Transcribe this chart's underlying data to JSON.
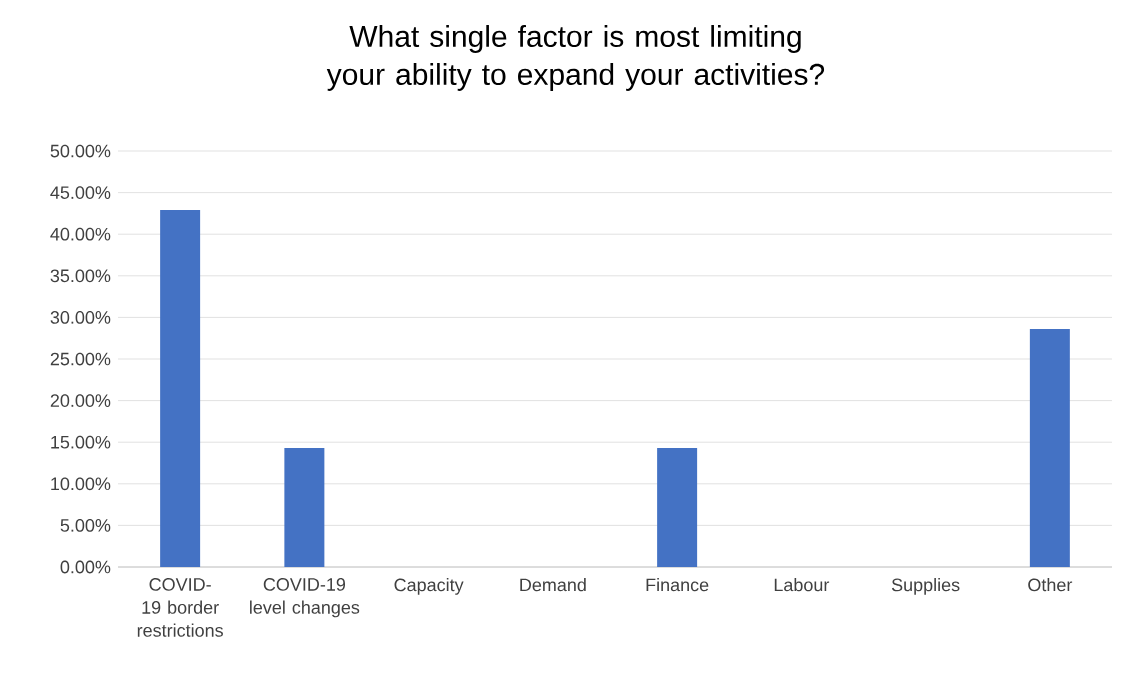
{
  "chart_data": {
    "type": "bar",
    "title": "What single factor is most limiting your ability to expand your activities?",
    "categories": [
      "COVID-19 border restrictions",
      "COVID-19 level changes",
      "Capacity",
      "Demand",
      "Finance",
      "Labour",
      "Supplies",
      "Other"
    ],
    "values": [
      42.9,
      14.3,
      0,
      0,
      14.3,
      0,
      0,
      28.6
    ],
    "color": "#4472c4",
    "ylim": [
      0,
      50
    ],
    "yticks": [
      {
        "value": 0,
        "label": "0.00%"
      },
      {
        "value": 5,
        "label": "5.00%"
      },
      {
        "value": 10,
        "label": "10.00%"
      },
      {
        "value": 15,
        "label": "15.00%"
      },
      {
        "value": 20,
        "label": "20.00%"
      },
      {
        "value": 25,
        "label": "25.00%"
      },
      {
        "value": 30,
        "label": "30.00%"
      },
      {
        "value": 35,
        "label": "35.00%"
      },
      {
        "value": 40,
        "label": "40.00%"
      },
      {
        "value": 45,
        "label": "45.00%"
      },
      {
        "value": 50,
        "label": "50.00%"
      }
    ],
    "grid": "y"
  }
}
